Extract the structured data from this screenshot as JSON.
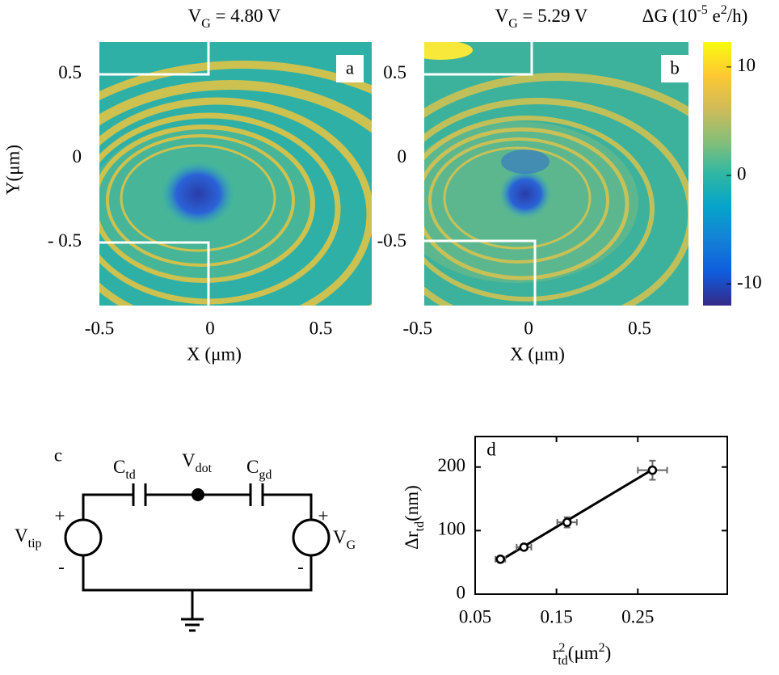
{
  "chart_data": [
    {
      "type": "heatmap",
      "panel_label": "a",
      "title": [
        "V",
        "G",
        " = 4.80 V"
      ],
      "xlabel": "X (μm)",
      "ylabel": "Y(μm)",
      "xlim": [
        -0.5,
        0.73
      ],
      "ylim": [
        -0.875,
        0.69
      ],
      "xticks": [
        -0.5,
        0,
        0.5
      ],
      "yticks": [
        0.5,
        0,
        {
          "value": -0.5,
          "label": "- 0.5"
        }
      ]
    },
    {
      "type": "heatmap",
      "panel_label": "b",
      "title": [
        "V",
        "G",
        " = 5.29 V"
      ],
      "xlabel": "X (μm)",
      "xlim": [
        -0.47,
        0.72
      ],
      "ylim": [
        -0.875,
        0.69
      ],
      "xticks": [
        -0.5,
        0,
        0.5
      ],
      "yticks": [
        0.5,
        0,
        -0.5
      ]
    },
    {
      "type": "colorbar",
      "title": [
        "ΔG (10",
        "-5",
        " e",
        "2",
        "/h)"
      ],
      "clim": [
        -12,
        12.3
      ],
      "ticks": [
        10,
        0,
        -10
      ],
      "colors": [
        "#352a87",
        "#0f5cdd",
        "#1481d6",
        "#06a4ca",
        "#2eb7a4",
        "#87bf77",
        "#d1bb59",
        "#fec832",
        "#f9fb0e"
      ]
    },
    {
      "type": "scatter",
      "panel_label": "d",
      "color": "#000000",
      "errcolor": "#666666",
      "xlabel": [
        "r",
        "2",
        "td",
        "(μm",
        "2",
        ")"
      ],
      "ylabel": [
        "Δr",
        "td",
        "(nm)"
      ],
      "x": [
        0.081,
        0.11,
        0.163,
        0.268
      ],
      "values": [
        55,
        74,
        113,
        195
      ],
      "xerr": [
        0.006,
        0.009,
        0.012,
        0.018
      ],
      "yerr": [
        5,
        4,
        8,
        15
      ],
      "fit": {
        "x": [
          0.081,
          0.268
        ],
        "values": [
          53,
          196
        ]
      },
      "xlim": [
        0.05,
        0.36
      ],
      "ylim": [
        0,
        248
      ],
      "xticks": [
        0.05,
        0.15,
        0.25
      ],
      "yticks": [
        0,
        100,
        200
      ]
    }
  ],
  "circuit": {
    "panel_label": "c",
    "c_td": [
      "C",
      "td"
    ],
    "v_dot": [
      "V",
      "dot"
    ],
    "c_gd": [
      "C",
      "gd"
    ],
    "v_tip": [
      "V",
      "tip"
    ],
    "v_g": [
      "V",
      "G"
    ],
    "tip_plus": "+",
    "tip_minus": "-",
    "g_plus": "+",
    "g_minus": "-"
  }
}
